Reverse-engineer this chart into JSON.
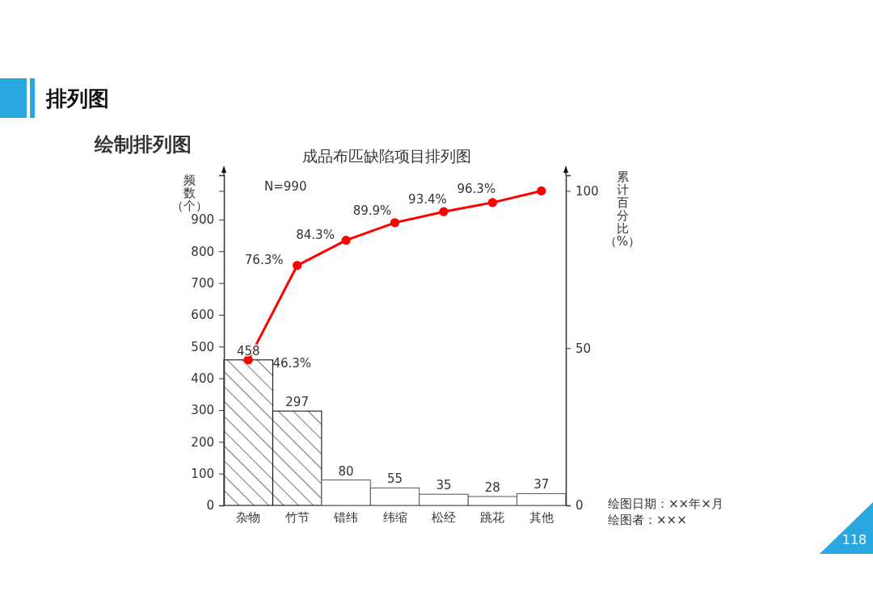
{
  "chart_data": {
    "type": "bar",
    "title": "成品布匹缺陷项目排列图",
    "annotations": [
      "排列图",
      "绘制排列图",
      "N=990",
      "绘图日期：××年×月",
      "绘图者：×××",
      "118"
    ],
    "ylabel": "频数（个）",
    "y2label": "累计百分比（%）",
    "categories": [
      "杂物",
      "竹节",
      "错纬",
      "纬缩",
      "松经",
      "跳花",
      "其他"
    ],
    "ylim": [
      0,
      1039.5
    ],
    "yticks": [
      0,
      100,
      200,
      300,
      400,
      500,
      600,
      700,
      800,
      900,
      {
        "value": 990,
        "label": null
      }
    ],
    "y2lim": [
      0,
      105
    ],
    "y2ticks": [
      0,
      50,
      100
    ],
    "series": [
      {
        "values": [
          458,
          297,
          80,
          55,
          35,
          28,
          37
        ],
        "colors": [
          "#000000",
          "#000000",
          "#ffffff",
          "#ffffff",
          "#ffffff",
          "#ffffff",
          "#ffffff"
        ],
        "value_labels": [
          "458",
          "297",
          "80",
          "55",
          "35",
          "28",
          "37"
        ]
      },
      {
        "type": "line",
        "axis": "y2",
        "color": "#ff0000",
        "marker": "circle",
        "values": [
          46.3,
          76.3,
          84.3,
          89.9,
          93.4,
          96.3,
          100
        ],
        "value_labels": [
          "46.3%",
          "76.3%",
          "84.3%",
          "89.9%",
          "93.4%",
          "96.3%",
          null
        ]
      }
    ]
  }
}
